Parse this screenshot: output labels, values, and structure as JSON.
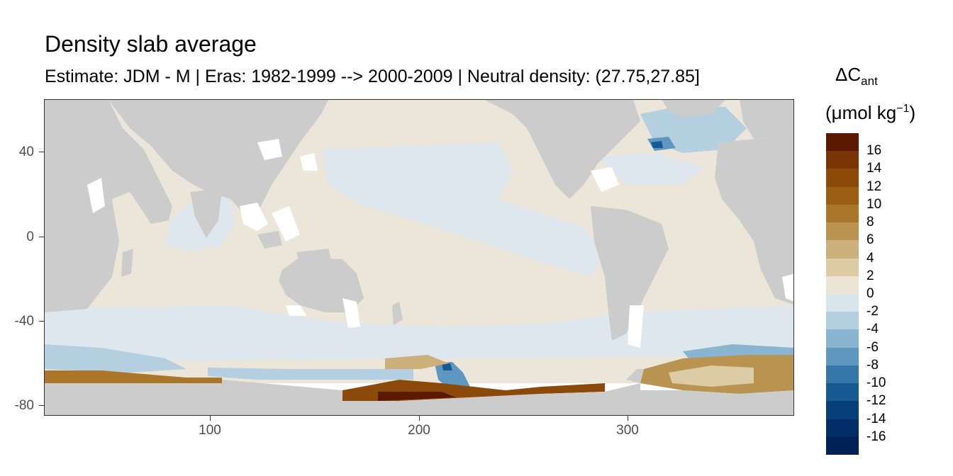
{
  "title": "Density slab average",
  "subtitle": "Estimate: JDM - M | Eras: 1982-1999 --> 2000-2009 | Neutral density: (27.75,27.85]",
  "legend": {
    "title_main": "ΔC",
    "title_sub": "ant",
    "unit_open": "(μmol kg",
    "unit_sup": "−1",
    "unit_close": ")",
    "labels": [
      "16",
      "14",
      "12",
      "10",
      "8",
      "6",
      "4",
      "2",
      "0",
      "-2",
      "-4",
      "-6",
      "-8",
      "-10",
      "-12",
      "-14",
      "-16"
    ],
    "colors": [
      "#5b1a00",
      "#7a3506",
      "#8c4a0a",
      "#9a5e12",
      "#a9762a",
      "#b99350",
      "#cbb07c",
      "#dccba5",
      "#ece4d4",
      "#d9e5ed",
      "#b4cfe0",
      "#8ab5d1",
      "#5e97c0",
      "#3577aa",
      "#155a92",
      "#073f78",
      "#022d66",
      "#00205a"
    ]
  },
  "axes": {
    "x_ticks": [
      100,
      200,
      300
    ],
    "y_ticks": [
      40,
      0,
      -40,
      -80
    ],
    "xlim": [
      20,
      380
    ],
    "ylim": [
      -85,
      65
    ]
  },
  "colors": {
    "land": "#cccccc",
    "ocean_neutral": "#ece6da",
    "ocean_negative": "#dde7ed",
    "no_data": "#ffffff"
  }
}
